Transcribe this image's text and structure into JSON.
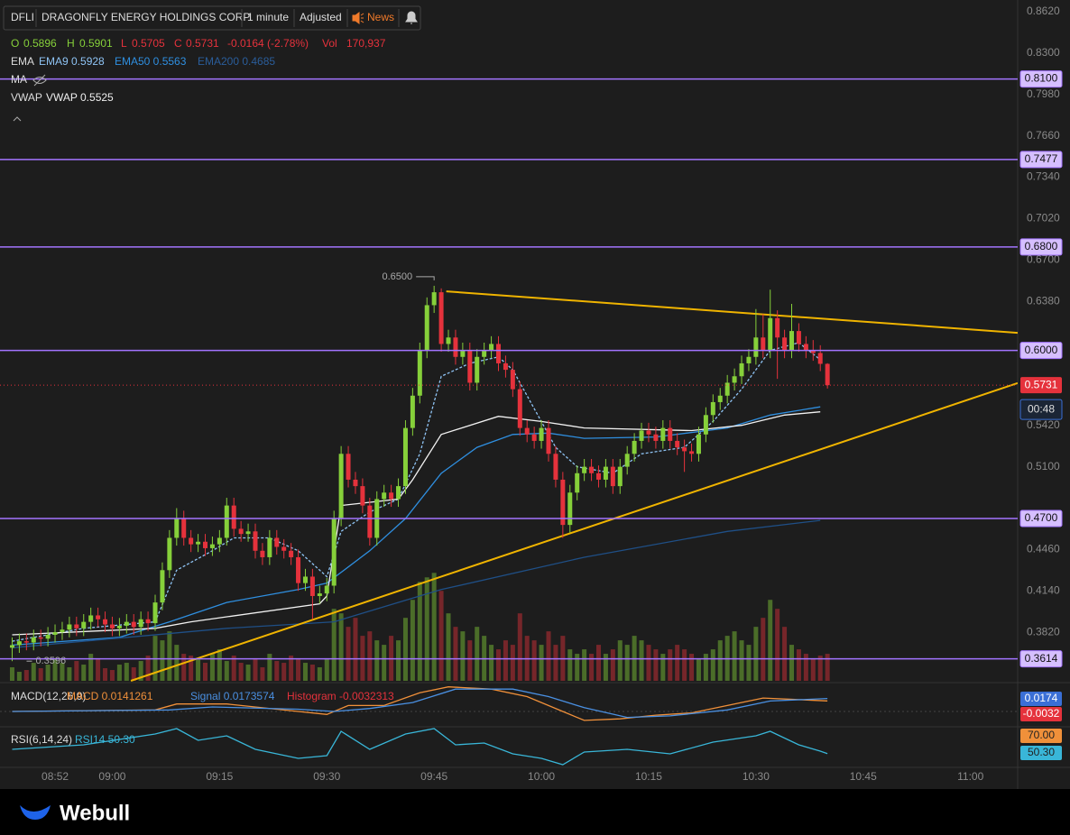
{
  "header": {
    "symbol": "DFLI",
    "name": "DRAGONFLY ENERGY HOLDINGS CORP",
    "interval": "1 minute",
    "adjusted": "Adjusted",
    "news": "News"
  },
  "legend": {
    "o": "O",
    "o_value": "0.5896",
    "h": "H",
    "h_value": "0.5901",
    "l": "L",
    "l_value": "0.5705",
    "c": "C",
    "c_value": "0.5731",
    "change": "-0.0164 (-2.78%)",
    "vol": "Vol",
    "vol_value": "170,937",
    "ema": "EMA",
    "ema9": "EMA9 0.5928",
    "ema50": "EMA50 0.5563",
    "ema200": "EMA200 0.4685",
    "ma": "MA",
    "vwap": "VWAP",
    "vwap_value": "VWAP 0.5525"
  },
  "macd_legend": {
    "title": "MACD(12,26,9)",
    "macd": "MACD 0.0141261",
    "signal": "Signal 0.0173574",
    "histogram": "Histogram -0.0032313",
    "tag_signal": "0.0174",
    "tag_hist": "-0.0032"
  },
  "rsi_legend": {
    "title": "RSI(6,14,24)",
    "rsi": "RSI14 50.30",
    "tag_70": "70.00",
    "tag_rsi": "50.30"
  },
  "footer": {
    "brand": "Webull"
  },
  "chart_data": {
    "type": "candlestick",
    "xlim": [
      -1.7,
      140.6
    ],
    "xticks": [
      {
        "value": 6,
        "label": "08:52"
      },
      {
        "value": 14,
        "label": "09:00"
      },
      {
        "value": 29,
        "label": "09:15"
      },
      {
        "value": 44,
        "label": "09:30"
      },
      {
        "value": 59,
        "label": "09:45"
      },
      {
        "value": 74,
        "label": "10:00"
      },
      {
        "value": 89,
        "label": "10:15"
      },
      {
        "value": 104,
        "label": "10:30"
      },
      {
        "value": 119,
        "label": "10:45"
      },
      {
        "value": 134,
        "label": "11:00"
      }
    ],
    "ylim": [
      0.3444,
      0.8697
    ],
    "yticks": [
      {
        "value": 0.862,
        "label": "0.8620"
      },
      {
        "value": 0.83,
        "label": "0.8300"
      },
      {
        "value": 0.798,
        "label": "0.7980"
      },
      {
        "value": 0.766,
        "label": "0.7660"
      },
      {
        "value": 0.734,
        "label": "0.7340"
      },
      {
        "value": 0.702,
        "label": "0.7020"
      },
      {
        "value": 0.67,
        "label": "0.6700"
      },
      {
        "value": 0.638,
        "label": "0.6380"
      },
      {
        "value": 0.542,
        "label": "0.5420"
      },
      {
        "value": 0.51,
        "label": "0.5100"
      },
      {
        "value": 0.446,
        "label": "0.4460"
      },
      {
        "value": 0.414,
        "label": "0.4140"
      },
      {
        "value": 0.382,
        "label": "0.3820"
      }
    ],
    "grid": false,
    "up_color": "#86d03a",
    "down_color": "#e5323c",
    "candles": [
      [
        0.37,
        0.378,
        0.3596,
        0.372
      ],
      [
        0.372,
        0.381,
        0.366,
        0.375
      ],
      [
        0.375,
        0.381,
        0.368,
        0.374
      ],
      [
        0.374,
        0.384,
        0.368,
        0.378
      ],
      [
        0.378,
        0.384,
        0.371,
        0.377
      ],
      [
        0.377,
        0.386,
        0.371,
        0.38
      ],
      [
        0.38,
        0.388,
        0.374,
        0.382
      ],
      [
        0.382,
        0.39,
        0.376,
        0.384
      ],
      [
        0.384,
        0.394,
        0.378,
        0.388
      ],
      [
        0.388,
        0.394,
        0.379,
        0.385
      ],
      [
        0.385,
        0.396,
        0.379,
        0.39
      ],
      [
        0.39,
        0.401,
        0.384,
        0.395
      ],
      [
        0.395,
        0.401,
        0.386,
        0.392
      ],
      [
        0.392,
        0.398,
        0.382,
        0.388
      ],
      [
        0.388,
        0.394,
        0.379,
        0.385
      ],
      [
        0.385,
        0.393,
        0.379,
        0.387
      ],
      [
        0.387,
        0.396,
        0.381,
        0.39
      ],
      [
        0.39,
        0.396,
        0.38,
        0.386
      ],
      [
        0.386,
        0.398,
        0.38,
        0.392
      ],
      [
        0.392,
        0.398,
        0.383,
        0.389
      ],
      [
        0.389,
        0.411,
        0.383,
        0.405
      ],
      [
        0.405,
        0.436,
        0.399,
        0.43
      ],
      [
        0.43,
        0.461,
        0.424,
        0.455
      ],
      [
        0.455,
        0.478,
        0.449,
        0.47
      ],
      [
        0.47,
        0.476,
        0.449,
        0.455
      ],
      [
        0.455,
        0.461,
        0.444,
        0.45
      ],
      [
        0.45,
        0.458,
        0.444,
        0.452
      ],
      [
        0.452,
        0.458,
        0.441,
        0.447
      ],
      [
        0.447,
        0.456,
        0.441,
        0.45
      ],
      [
        0.45,
        0.461,
        0.444,
        0.455
      ],
      [
        0.455,
        0.486,
        0.449,
        0.48
      ],
      [
        0.48,
        0.486,
        0.456,
        0.462
      ],
      [
        0.462,
        0.468,
        0.452,
        0.458
      ],
      [
        0.458,
        0.466,
        0.452,
        0.46
      ],
      [
        0.46,
        0.466,
        0.439,
        0.445
      ],
      [
        0.445,
        0.451,
        0.434,
        0.44
      ],
      [
        0.44,
        0.461,
        0.434,
        0.455
      ],
      [
        0.455,
        0.461,
        0.442,
        0.448
      ],
      [
        0.448,
        0.454,
        0.439,
        0.445
      ],
      [
        0.445,
        0.451,
        0.434,
        0.44
      ],
      [
        0.44,
        0.446,
        0.414,
        0.42
      ],
      [
        0.42,
        0.431,
        0.414,
        0.425
      ],
      [
        0.425,
        0.431,
        0.392,
        0.41
      ],
      [
        0.41,
        0.418,
        0.404,
        0.412
      ],
      [
        0.412,
        0.424,
        0.406,
        0.418
      ],
      [
        0.418,
        0.476,
        0.412,
        0.47
      ],
      [
        0.47,
        0.526,
        0.464,
        0.52
      ],
      [
        0.52,
        0.526,
        0.494,
        0.5
      ],
      [
        0.5,
        0.506,
        0.489,
        0.495
      ],
      [
        0.495,
        0.501,
        0.474,
        0.48
      ],
      [
        0.48,
        0.486,
        0.449,
        0.455
      ],
      [
        0.455,
        0.491,
        0.449,
        0.485
      ],
      [
        0.485,
        0.496,
        0.479,
        0.49
      ],
      [
        0.49,
        0.496,
        0.479,
        0.485
      ],
      [
        0.485,
        0.501,
        0.479,
        0.495
      ],
      [
        0.495,
        0.546,
        0.489,
        0.54
      ],
      [
        0.54,
        0.571,
        0.534,
        0.565
      ],
      [
        0.565,
        0.606,
        0.559,
        0.6
      ],
      [
        0.6,
        0.641,
        0.594,
        0.635
      ],
      [
        0.635,
        0.65,
        0.629,
        0.645
      ],
      [
        0.645,
        0.648,
        0.599,
        0.605
      ],
      [
        0.605,
        0.616,
        0.599,
        0.61
      ],
      [
        0.61,
        0.616,
        0.589,
        0.595
      ],
      [
        0.595,
        0.606,
        0.589,
        0.6
      ],
      [
        0.6,
        0.606,
        0.569,
        0.575
      ],
      [
        0.575,
        0.601,
        0.569,
        0.595
      ],
      [
        0.595,
        0.606,
        0.589,
        0.6
      ],
      [
        0.6,
        0.611,
        0.594,
        0.605
      ],
      [
        0.605,
        0.611,
        0.584,
        0.59
      ],
      [
        0.59,
        0.596,
        0.579,
        0.585
      ],
      [
        0.585,
        0.591,
        0.564,
        0.57
      ],
      [
        0.57,
        0.576,
        0.534,
        0.54
      ],
      [
        0.54,
        0.546,
        0.529,
        0.535
      ],
      [
        0.535,
        0.541,
        0.524,
        0.53
      ],
      [
        0.53,
        0.546,
        0.524,
        0.54
      ],
      [
        0.54,
        0.546,
        0.514,
        0.52
      ],
      [
        0.52,
        0.526,
        0.494,
        0.5
      ],
      [
        0.5,
        0.506,
        0.455,
        0.465
      ],
      [
        0.465,
        0.496,
        0.459,
        0.49
      ],
      [
        0.49,
        0.511,
        0.484,
        0.505
      ],
      [
        0.505,
        0.516,
        0.499,
        0.51
      ],
      [
        0.51,
        0.516,
        0.499,
        0.505
      ],
      [
        0.505,
        0.511,
        0.494,
        0.5
      ],
      [
        0.5,
        0.516,
        0.494,
        0.51
      ],
      [
        0.51,
        0.516,
        0.489,
        0.495
      ],
      [
        0.495,
        0.516,
        0.489,
        0.51
      ],
      [
        0.51,
        0.526,
        0.504,
        0.52
      ],
      [
        0.52,
        0.536,
        0.514,
        0.53
      ],
      [
        0.53,
        0.544,
        0.524,
        0.538
      ],
      [
        0.538,
        0.544,
        0.529,
        0.535
      ],
      [
        0.535,
        0.541,
        0.524,
        0.53
      ],
      [
        0.53,
        0.546,
        0.524,
        0.54
      ],
      [
        0.54,
        0.546,
        0.524,
        0.53
      ],
      [
        0.53,
        0.536,
        0.519,
        0.525
      ],
      [
        0.525,
        0.531,
        0.506,
        0.522
      ],
      [
        0.522,
        0.528,
        0.514,
        0.52
      ],
      [
        0.52,
        0.541,
        0.514,
        0.535
      ],
      [
        0.535,
        0.556,
        0.529,
        0.55
      ],
      [
        0.55,
        0.566,
        0.544,
        0.56
      ],
      [
        0.56,
        0.571,
        0.554,
        0.565
      ],
      [
        0.565,
        0.581,
        0.559,
        0.575
      ],
      [
        0.575,
        0.586,
        0.569,
        0.58
      ],
      [
        0.58,
        0.596,
        0.574,
        0.59
      ],
      [
        0.59,
        0.601,
        0.584,
        0.595
      ],
      [
        0.595,
        0.632,
        0.589,
        0.61
      ],
      [
        0.61,
        0.628,
        0.594,
        0.6
      ],
      [
        0.6,
        0.647,
        0.594,
        0.625
      ],
      [
        0.625,
        0.631,
        0.578,
        0.61
      ],
      [
        0.61,
        0.616,
        0.594,
        0.6
      ],
      [
        0.6,
        0.636,
        0.594,
        0.615
      ],
      [
        0.615,
        0.621,
        0.599,
        0.605
      ],
      [
        0.605,
        0.611,
        0.594,
        0.6
      ],
      [
        0.6,
        0.608,
        0.592,
        0.598
      ],
      [
        0.598,
        0.604,
        0.584,
        0.5896
      ],
      [
        0.5896,
        0.5901,
        0.5705,
        0.5731
      ]
    ],
    "volume_lim": [
      0,
      1200000
    ],
    "volume": [
      85500,
      57000,
      68400,
      114000,
      79800,
      102600,
      142500,
      114000,
      85500,
      125400,
      102600,
      171000,
      142500,
      79800,
      68400,
      102600,
      114000,
      85500,
      125400,
      159600,
      285000,
      256500,
      313500,
      228000,
      171000,
      159600,
      142500,
      114000,
      171000,
      199500,
      125400,
      159600,
      114000,
      102600,
      142500,
      85500,
      171000,
      125400,
      114000,
      159600,
      142500,
      114000,
      102600,
      85500,
      142500,
      456000,
      427500,
      342000,
      399000,
      285000,
      313500,
      256500,
      228000,
      285000,
      256500,
      399000,
      513000,
      627000,
      655500,
      684000,
      570000,
      427500,
      342000,
      313500,
      256500,
      342000,
      285000,
      228000,
      199500,
      256500,
      228000,
      427500,
      285000,
      256500,
      228000,
      313500,
      228000,
      285000,
      199500,
      171000,
      199500,
      171000,
      228000,
      171000,
      199500,
      256500,
      228000,
      285000,
      256500,
      228000,
      199500,
      171000,
      199500,
      228000,
      199500,
      171000,
      142500,
      171000,
      199500,
      256500,
      285000,
      313500,
      256500,
      228000,
      342000,
      399000,
      513000,
      456000,
      342000,
      228000,
      199500,
      171000,
      142500,
      159600,
      170937
    ],
    "levels": [
      {
        "value": 0.81,
        "label": "0.8100"
      },
      {
        "value": 0.7477,
        "label": "0.7477"
      },
      {
        "value": 0.68,
        "label": "0.6800"
      },
      {
        "value": 0.6,
        "label": "0.6000"
      },
      {
        "value": 0.47,
        "label": "0.4700"
      },
      {
        "value": 0.3614,
        "label": "0.3614"
      }
    ],
    "level_color": "#a374ff",
    "last_price": {
      "value": 0.5731,
      "label": "0.5731",
      "countdown": "00:48"
    },
    "high_marker": {
      "x": 59,
      "value": 0.65,
      "label": "0.6500"
    },
    "low_marker": {
      "x": 0,
      "value": 0.3596,
      "label": "0.3596"
    },
    "trendlines": [
      {
        "x": [
          60.7,
          140.6
        ],
        "y": [
          0.6457,
          0.6136
        ],
        "color": "#f0b400"
      },
      {
        "x": [
          16.6,
          140.6
        ],
        "y": [
          0.3444,
          0.5747
        ],
        "color": "#f0b400"
      }
    ],
    "overlays": [
      {
        "color": "#8fc4f5",
        "dash": true,
        "x": [
          0,
          10,
          20,
          23,
          28,
          31,
          36,
          40,
          44,
          46,
          50,
          54,
          57,
          60,
          64,
          68,
          70,
          73,
          76,
          79,
          84,
          88,
          94,
          98,
          102,
          106,
          110,
          113
        ],
        "values": [
          0.375,
          0.385,
          0.39,
          0.43,
          0.445,
          0.455,
          0.455,
          0.445,
          0.425,
          0.46,
          0.475,
          0.485,
          0.52,
          0.58,
          0.59,
          0.595,
          0.585,
          0.555,
          0.525,
          0.51,
          0.505,
          0.52,
          0.525,
          0.545,
          0.57,
          0.6,
          0.606,
          0.5928
        ]
      },
      {
        "color": "#2f8fe0",
        "dash": false,
        "x": [
          0,
          15,
          22,
          30,
          40,
          44,
          50,
          55,
          60,
          65,
          70,
          75,
          80,
          90,
          100,
          106,
          113
        ],
        "values": [
          0.372,
          0.378,
          0.39,
          0.405,
          0.415,
          0.42,
          0.445,
          0.47,
          0.505,
          0.525,
          0.535,
          0.536,
          0.532,
          0.533,
          0.54,
          0.55,
          0.5563
        ]
      },
      {
        "color": "#1f4f86",
        "dash": false,
        "x": [
          0,
          30,
          45,
          60,
          80,
          100,
          113
        ],
        "values": [
          0.37,
          0.385,
          0.39,
          0.415,
          0.44,
          0.46,
          0.4685
        ]
      },
      {
        "color": "#f2f2f2",
        "dash": false,
        "x": [
          0,
          20,
          25,
          43,
          44,
          46,
          54,
          56,
          60,
          68,
          74,
          80,
          95,
          102,
          108,
          113
        ],
        "values": [
          0.38,
          0.385,
          0.39,
          0.404,
          0.41,
          0.48,
          0.485,
          0.5,
          0.535,
          0.549,
          0.545,
          0.54,
          0.538,
          0.542,
          0.55,
          0.5525
        ]
      }
    ],
    "macd_lim": [
      -0.0194,
      0.0375
    ],
    "macd_lines": [
      {
        "color": "#f0903a",
        "x": [
          0,
          20,
          23,
          30,
          40,
          44,
          47,
          52,
          57,
          61,
          67,
          72,
          77,
          80,
          85,
          90,
          95,
          100,
          105,
          114
        ],
        "values": [
          0,
          0.002,
          0.01,
          0.01,
          0,
          -0.004,
          0.008,
          0.008,
          0.025,
          0.033,
          0.03,
          0.02,
          0,
          -0.012,
          -0.01,
          -0.005,
          -0.002,
          0.008,
          0.018,
          0.0141261
        ]
      },
      {
        "color": "#4a90e2",
        "x": [
          0,
          22,
          28,
          40,
          45,
          50,
          56,
          62,
          70,
          75,
          80,
          86,
          92,
          100,
          106,
          114
        ],
        "values": [
          0,
          0.002,
          0.006,
          0.003,
          0,
          0.004,
          0.012,
          0.03,
          0.03,
          0.02,
          0.005,
          -0.008,
          -0.006,
          0.002,
          0.014,
          0.0173574
        ]
      }
    ],
    "rsi_lim": [
      36,
      79
    ],
    "rsi_line": {
      "color": "#39b6d8",
      "x": [
        0,
        10,
        20,
        23,
        26,
        30,
        34,
        40,
        44,
        46,
        50,
        55,
        59,
        62,
        66,
        70,
        74,
        77,
        80,
        86,
        92,
        98,
        104,
        106,
        110,
        113,
        114
      ],
      "values": [
        55,
        60,
        72,
        78,
        65,
        70,
        55,
        45,
        48,
        75,
        55,
        72,
        78,
        60,
        62,
        50,
        45,
        38,
        52,
        55,
        50,
        63,
        70,
        75,
        60,
        53,
        50.3
      ]
    }
  }
}
